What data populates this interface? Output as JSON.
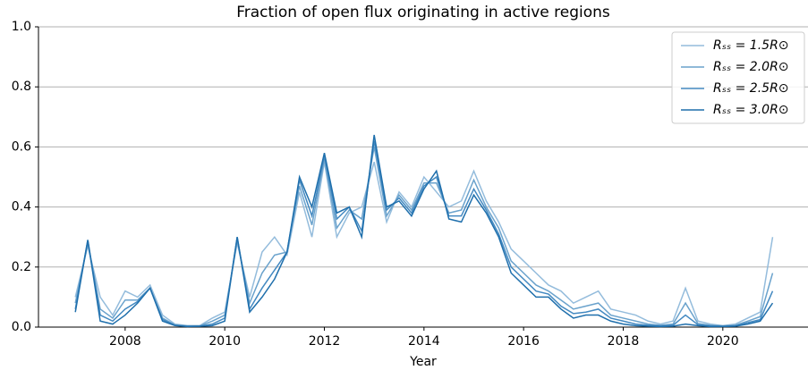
{
  "chart_data": {
    "type": "line",
    "title": "Fraction of open flux originating in active regions",
    "xlabel": "Year",
    "x": [
      2007.0,
      2007.25,
      2007.5,
      2007.75,
      2008.0,
      2008.25,
      2008.5,
      2008.75,
      2009.0,
      2009.25,
      2009.5,
      2009.75,
      2010.0,
      2010.25,
      2010.5,
      2010.75,
      2011.0,
      2011.25,
      2011.5,
      2011.75,
      2012.0,
      2012.25,
      2012.5,
      2012.75,
      2013.0,
      2013.25,
      2013.5,
      2013.75,
      2014.0,
      2014.25,
      2014.5,
      2014.75,
      2015.0,
      2015.25,
      2015.5,
      2015.75,
      2016.0,
      2016.25,
      2016.5,
      2016.75,
      2017.0,
      2017.25,
      2017.5,
      2017.75,
      2018.0,
      2018.25,
      2018.5,
      2018.75,
      2019.0,
      2019.25,
      2019.5,
      2019.75,
      2020.0,
      2020.25,
      2020.5,
      2020.75,
      2021.0
    ],
    "series": [
      {
        "name": "Rₛₛ = 1.5R⊙",
        "color": "#94bcdc",
        "values": [
          0.1,
          0.27,
          0.1,
          0.04,
          0.12,
          0.1,
          0.14,
          0.04,
          0.01,
          0.005,
          0.005,
          0.03,
          0.05,
          0.28,
          0.1,
          0.25,
          0.3,
          0.24,
          0.45,
          0.3,
          0.55,
          0.3,
          0.38,
          0.4,
          0.55,
          0.35,
          0.45,
          0.4,
          0.5,
          0.45,
          0.4,
          0.42,
          0.52,
          0.42,
          0.35,
          0.26,
          0.22,
          0.18,
          0.14,
          0.12,
          0.08,
          0.1,
          0.12,
          0.06,
          0.05,
          0.04,
          0.02,
          0.01,
          0.02,
          0.13,
          0.02,
          0.01,
          0.005,
          0.01,
          0.03,
          0.05,
          0.3
        ]
      },
      {
        "name": "Rₛₛ = 2.0R⊙",
        "color": "#6aa2cc",
        "values": [
          0.08,
          0.28,
          0.06,
          0.03,
          0.09,
          0.09,
          0.13,
          0.03,
          0.007,
          0.004,
          0.004,
          0.02,
          0.04,
          0.29,
          0.08,
          0.18,
          0.24,
          0.25,
          0.47,
          0.34,
          0.56,
          0.33,
          0.39,
          0.36,
          0.6,
          0.37,
          0.44,
          0.39,
          0.48,
          0.48,
          0.38,
          0.39,
          0.49,
          0.4,
          0.33,
          0.22,
          0.18,
          0.14,
          0.12,
          0.09,
          0.06,
          0.07,
          0.08,
          0.04,
          0.03,
          0.02,
          0.01,
          0.006,
          0.01,
          0.08,
          0.012,
          0.006,
          0.004,
          0.006,
          0.02,
          0.035,
          0.18
        ]
      },
      {
        "name": "Rₛₛ = 2.5R⊙",
        "color": "#4389c1",
        "values": [
          0.06,
          0.29,
          0.04,
          0.02,
          0.06,
          0.085,
          0.13,
          0.025,
          0.006,
          0.003,
          0.003,
          0.01,
          0.03,
          0.3,
          0.06,
          0.13,
          0.19,
          0.25,
          0.49,
          0.37,
          0.57,
          0.36,
          0.4,
          0.32,
          0.62,
          0.39,
          0.43,
          0.38,
          0.47,
          0.5,
          0.37,
          0.37,
          0.46,
          0.39,
          0.31,
          0.2,
          0.16,
          0.12,
          0.11,
          0.07,
          0.045,
          0.05,
          0.06,
          0.03,
          0.02,
          0.01,
          0.006,
          0.004,
          0.006,
          0.04,
          0.008,
          0.004,
          0.003,
          0.004,
          0.015,
          0.025,
          0.12
        ]
      },
      {
        "name": "Rₛₛ = 3.0R⊙",
        "color": "#1f6fac",
        "values": [
          0.05,
          0.29,
          0.02,
          0.01,
          0.04,
          0.08,
          0.13,
          0.02,
          0.005,
          0.002,
          0.003,
          0.005,
          0.02,
          0.3,
          0.05,
          0.1,
          0.16,
          0.25,
          0.5,
          0.4,
          0.58,
          0.38,
          0.4,
          0.3,
          0.64,
          0.4,
          0.42,
          0.37,
          0.46,
          0.52,
          0.36,
          0.35,
          0.44,
          0.38,
          0.3,
          0.18,
          0.14,
          0.1,
          0.1,
          0.06,
          0.03,
          0.04,
          0.04,
          0.02,
          0.01,
          0.005,
          0.003,
          0.002,
          0.003,
          0.01,
          0.005,
          0.002,
          0.002,
          0.003,
          0.01,
          0.02,
          0.08
        ]
      }
    ],
    "xlim": [
      2006.26,
      2021.71
    ],
    "xticks": [
      2008,
      2010,
      2012,
      2014,
      2016,
      2018,
      2020
    ],
    "ylim": [
      0,
      1
    ],
    "yticks": [
      {
        "value": 0,
        "label": "0.0"
      },
      0.2,
      0.4,
      0.6,
      0.8,
      {
        "value": 1,
        "label": "1.0"
      }
    ],
    "grid": true,
    "legend": "upper right"
  }
}
